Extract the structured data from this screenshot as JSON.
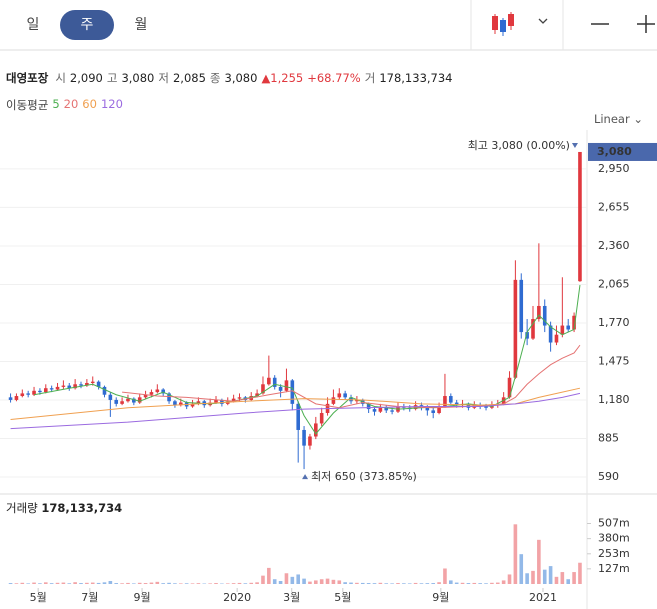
{
  "ui": {
    "tabs": [
      "일",
      "주",
      "월"
    ],
    "selected_tab": 1,
    "scale_mode": "Linear"
  },
  "header": {
    "name": "대영포장",
    "fields": [
      {
        "label": "시",
        "value": "2,090"
      },
      {
        "label": "고",
        "value": "3,080"
      },
      {
        "label": "저",
        "value": "2,085"
      },
      {
        "label": "종",
        "value": "3,080"
      }
    ],
    "change": "▲1,255",
    "rate": "+68.77%",
    "volume_label": "거",
    "volume": "178,133,734"
  },
  "chart_data": {
    "type": "candlestick",
    "ma_label": "이동평균",
    "up_color": "#e0383e",
    "down_color": "#2f6bd1",
    "volume_up_color": "#f2a3a6",
    "volume_down_color": "#93b9e8",
    "xlim": [
      -1.8,
      98.2
    ],
    "xticks": [
      {
        "value": 4.7,
        "label": "5월"
      },
      {
        "value": 13.5,
        "label": "7월"
      },
      {
        "value": 22.4,
        "label": "9월"
      },
      {
        "value": 38.6,
        "label": "2020"
      },
      {
        "value": 47.9,
        "label": "3월"
      },
      {
        "value": 56.6,
        "label": "5월"
      },
      {
        "value": 73.3,
        "label": "9월"
      },
      {
        "value": 90.7,
        "label": "2021"
      }
    ],
    "ylim": [
      490,
      3210
    ],
    "yticks": [
      {
        "value": 590,
        "label": "590"
      },
      {
        "value": 885,
        "label": "885"
      },
      {
        "value": 1180,
        "label": "1,180"
      },
      {
        "value": 1475,
        "label": "1,475"
      },
      {
        "value": 1770,
        "label": "1,770"
      },
      {
        "value": 2065,
        "label": "2,065"
      },
      {
        "value": 2360,
        "label": "2,360"
      },
      {
        "value": 2655,
        "label": "2,655"
      },
      {
        "value": 2950,
        "label": "2,950"
      }
    ],
    "grid": true,
    "last_price": {
      "value": 3080,
      "label": "3,080"
    },
    "annotations": {
      "high": "최고 3,080 (0.00%)",
      "high_value": 3080,
      "high_x": 97,
      "low": "최저 650 (373.85%)",
      "low_value": 650,
      "low_x": 50
    },
    "candles": [
      [
        1200,
        1230,
        1160,
        1180
      ],
      [
        1180,
        1230,
        1170,
        1210
      ],
      [
        1210,
        1260,
        1200,
        1230
      ],
      [
        1230,
        1250,
        1200,
        1220
      ],
      [
        1220,
        1280,
        1210,
        1250
      ],
      [
        1250,
        1270,
        1220,
        1240
      ],
      [
        1240,
        1300,
        1230,
        1270
      ],
      [
        1270,
        1290,
        1240,
        1260
      ],
      [
        1260,
        1310,
        1250,
        1280
      ],
      [
        1280,
        1330,
        1260,
        1290
      ],
      [
        1290,
        1310,
        1250,
        1270
      ],
      [
        1270,
        1340,
        1260,
        1300
      ],
      [
        1300,
        1320,
        1270,
        1290
      ],
      [
        1290,
        1340,
        1280,
        1310
      ],
      [
        1310,
        1360,
        1290,
        1320
      ],
      [
        1320,
        1330,
        1260,
        1280
      ],
      [
        1280,
        1290,
        1200,
        1220
      ],
      [
        1220,
        1240,
        1050,
        1180
      ],
      [
        1180,
        1200,
        1130,
        1150
      ],
      [
        1150,
        1200,
        1140,
        1170
      ],
      [
        1170,
        1220,
        1160,
        1190
      ],
      [
        1190,
        1200,
        1140,
        1160
      ],
      [
        1160,
        1230,
        1150,
        1200
      ],
      [
        1200,
        1250,
        1190,
        1220
      ],
      [
        1220,
        1260,
        1200,
        1240
      ],
      [
        1240,
        1300,
        1230,
        1260
      ],
      [
        1260,
        1270,
        1210,
        1230
      ],
      [
        1230,
        1240,
        1150,
        1170
      ],
      [
        1170,
        1180,
        1120,
        1140
      ],
      [
        1140,
        1190,
        1130,
        1160
      ],
      [
        1160,
        1170,
        1110,
        1130
      ],
      [
        1130,
        1180,
        1120,
        1150
      ],
      [
        1150,
        1200,
        1140,
        1170
      ],
      [
        1170,
        1180,
        1120,
        1140
      ],
      [
        1140,
        1190,
        1130,
        1160
      ],
      [
        1160,
        1210,
        1150,
        1180
      ],
      [
        1180,
        1190,
        1130,
        1150
      ],
      [
        1150,
        1200,
        1140,
        1170
      ],
      [
        1170,
        1220,
        1160,
        1190
      ],
      [
        1190,
        1230,
        1170,
        1200
      ],
      [
        1200,
        1210,
        1160,
        1180
      ],
      [
        1180,
        1240,
        1170,
        1210
      ],
      [
        1210,
        1260,
        1200,
        1230
      ],
      [
        1230,
        1360,
        1220,
        1300
      ],
      [
        1300,
        1520,
        1290,
        1350
      ],
      [
        1350,
        1370,
        1260,
        1280
      ],
      [
        1280,
        1300,
        1200,
        1250
      ],
      [
        1250,
        1420,
        1240,
        1330
      ],
      [
        1330,
        1340,
        1100,
        1150
      ],
      [
        1150,
        1170,
        700,
        950
      ],
      [
        950,
        980,
        650,
        830
      ],
      [
        830,
        920,
        800,
        900
      ],
      [
        900,
        1050,
        880,
        1000
      ],
      [
        1000,
        1120,
        980,
        1080
      ],
      [
        1080,
        1200,
        1060,
        1150
      ],
      [
        1150,
        1260,
        1140,
        1200
      ],
      [
        1200,
        1270,
        1180,
        1230
      ],
      [
        1230,
        1250,
        1180,
        1200
      ],
      [
        1200,
        1220,
        1150,
        1170
      ],
      [
        1170,
        1210,
        1150,
        1180
      ],
      [
        1180,
        1190,
        1130,
        1150
      ],
      [
        1150,
        1160,
        1080,
        1110
      ],
      [
        1110,
        1130,
        1060,
        1090
      ],
      [
        1090,
        1150,
        1080,
        1120
      ],
      [
        1120,
        1140,
        1080,
        1100
      ],
      [
        1100,
        1120,
        1070,
        1090
      ],
      [
        1090,
        1160,
        1080,
        1130
      ],
      [
        1130,
        1150,
        1100,
        1120
      ],
      [
        1120,
        1140,
        1090,
        1110
      ],
      [
        1110,
        1170,
        1100,
        1140
      ],
      [
        1140,
        1160,
        1100,
        1120
      ],
      [
        1120,
        1140,
        1060,
        1100
      ],
      [
        1100,
        1120,
        1040,
        1080
      ],
      [
        1080,
        1160,
        1070,
        1130
      ],
      [
        1130,
        1380,
        1120,
        1210
      ],
      [
        1210,
        1230,
        1140,
        1160
      ],
      [
        1160,
        1180,
        1120,
        1140
      ],
      [
        1140,
        1180,
        1120,
        1150
      ],
      [
        1150,
        1160,
        1100,
        1120
      ],
      [
        1120,
        1170,
        1110,
        1140
      ],
      [
        1140,
        1160,
        1110,
        1130
      ],
      [
        1130,
        1150,
        1100,
        1120
      ],
      [
        1120,
        1170,
        1110,
        1140
      ],
      [
        1140,
        1180,
        1120,
        1150
      ],
      [
        1150,
        1240,
        1140,
        1200
      ],
      [
        1200,
        1400,
        1190,
        1350
      ],
      [
        1350,
        2250,
        1340,
        2100
      ],
      [
        2100,
        2150,
        1650,
        1700
      ],
      [
        1700,
        1800,
        1600,
        1650
      ],
      [
        1650,
        1900,
        1640,
        1800
      ],
      [
        1800,
        2380,
        1780,
        1900
      ],
      [
        1900,
        1950,
        1700,
        1750
      ],
      [
        1750,
        1780,
        1550,
        1620
      ],
      [
        1620,
        1750,
        1600,
        1680
      ],
      [
        1680,
        2120,
        1660,
        1750
      ],
      [
        1750,
        1800,
        1700,
        1720
      ],
      [
        1720,
        1850,
        1700,
        1825
      ],
      [
        2090,
        3080,
        2085,
        3080
      ]
    ],
    "volume_title": "거래량",
    "volume_total": "178,133,734",
    "volume": [
      8000000,
      6000000,
      10000000,
      5000000,
      12000000,
      6000000,
      14000000,
      7000000,
      10000000,
      12000000,
      6000000,
      15000000,
      8000000,
      10000000,
      12000000,
      9000000,
      14000000,
      25000000,
      8000000,
      6000000,
      9000000,
      5000000,
      10000000,
      8000000,
      12000000,
      18000000,
      7000000,
      10000000,
      6000000,
      5000000,
      6000000,
      5000000,
      7000000,
      4000000,
      5000000,
      8000000,
      4000000,
      5000000,
      7000000,
      9000000,
      6000000,
      10000000,
      14000000,
      70000000,
      135000000,
      40000000,
      25000000,
      90000000,
      60000000,
      80000000,
      45000000,
      20000000,
      30000000,
      40000000,
      45000000,
      35000000,
      30000000,
      15000000,
      12000000,
      10000000,
      9000000,
      8000000,
      7000000,
      10000000,
      6000000,
      5000000,
      8000000,
      6000000,
      5000000,
      9000000,
      6000000,
      7000000,
      8000000,
      15000000,
      130000000,
      30000000,
      12000000,
      10000000,
      8000000,
      9000000,
      7000000,
      6000000,
      10000000,
      12000000,
      30000000,
      80000000,
      500000000,
      250000000,
      90000000,
      110000000,
      370000000,
      120000000,
      150000000,
      60000000,
      100000000,
      40000000,
      100000000,
      178133734
    ],
    "vlim": [
      0,
      620000000
    ],
    "vticks": [
      {
        "value": 127000000,
        "label": "127m"
      },
      {
        "value": 253000000,
        "label": "253m"
      },
      {
        "value": 380000000,
        "label": "380m"
      },
      {
        "value": 507000000,
        "label": "507m"
      }
    ],
    "series": [
      {
        "name": "5",
        "color": "#4caf50",
        "x": [
          4,
          10,
          14,
          18,
          22,
          26,
          30,
          34,
          38,
          42,
          45,
          48,
          50,
          52,
          55,
          58,
          62,
          66,
          70,
          74,
          78,
          82,
          85,
          86,
          88,
          90,
          92,
          94,
          96,
          97
        ],
        "values": [
          1220,
          1270,
          1300,
          1220,
          1170,
          1240,
          1160,
          1150,
          1170,
          1210,
          1300,
          1270,
          1060,
          920,
          1080,
          1200,
          1130,
          1110,
          1120,
          1130,
          1150,
          1130,
          1200,
          1360,
          1700,
          1830,
          1740,
          1680,
          1720,
          2060
        ]
      },
      {
        "name": "20",
        "color": "#e57373",
        "x": [
          19,
          25,
          30,
          38,
          44,
          48,
          52,
          56,
          60,
          66,
          72,
          78,
          84,
          86,
          88,
          90,
          92,
          94,
          96,
          97
        ],
        "values": [
          1240,
          1210,
          1200,
          1170,
          1220,
          1250,
          1150,
          1120,
          1160,
          1130,
          1120,
          1130,
          1150,
          1200,
          1300,
          1380,
          1450,
          1500,
          1540,
          1600
        ]
      },
      {
        "name": "60",
        "color": "#f0a050",
        "x": [
          0,
          20,
          40,
          50,
          60,
          70,
          80,
          86,
          90,
          94,
          97
        ],
        "values": [
          1030,
          1120,
          1170,
          1190,
          1180,
          1150,
          1140,
          1150,
          1200,
          1240,
          1270
        ]
      },
      {
        "name": "120",
        "color": "#9b6be0",
        "x": [
          0,
          20,
          40,
          50,
          60,
          70,
          80,
          86,
          90,
          94,
          97
        ],
        "values": [
          960,
          1010,
          1080,
          1110,
          1120,
          1130,
          1130,
          1150,
          1170,
          1200,
          1230
        ]
      }
    ]
  }
}
